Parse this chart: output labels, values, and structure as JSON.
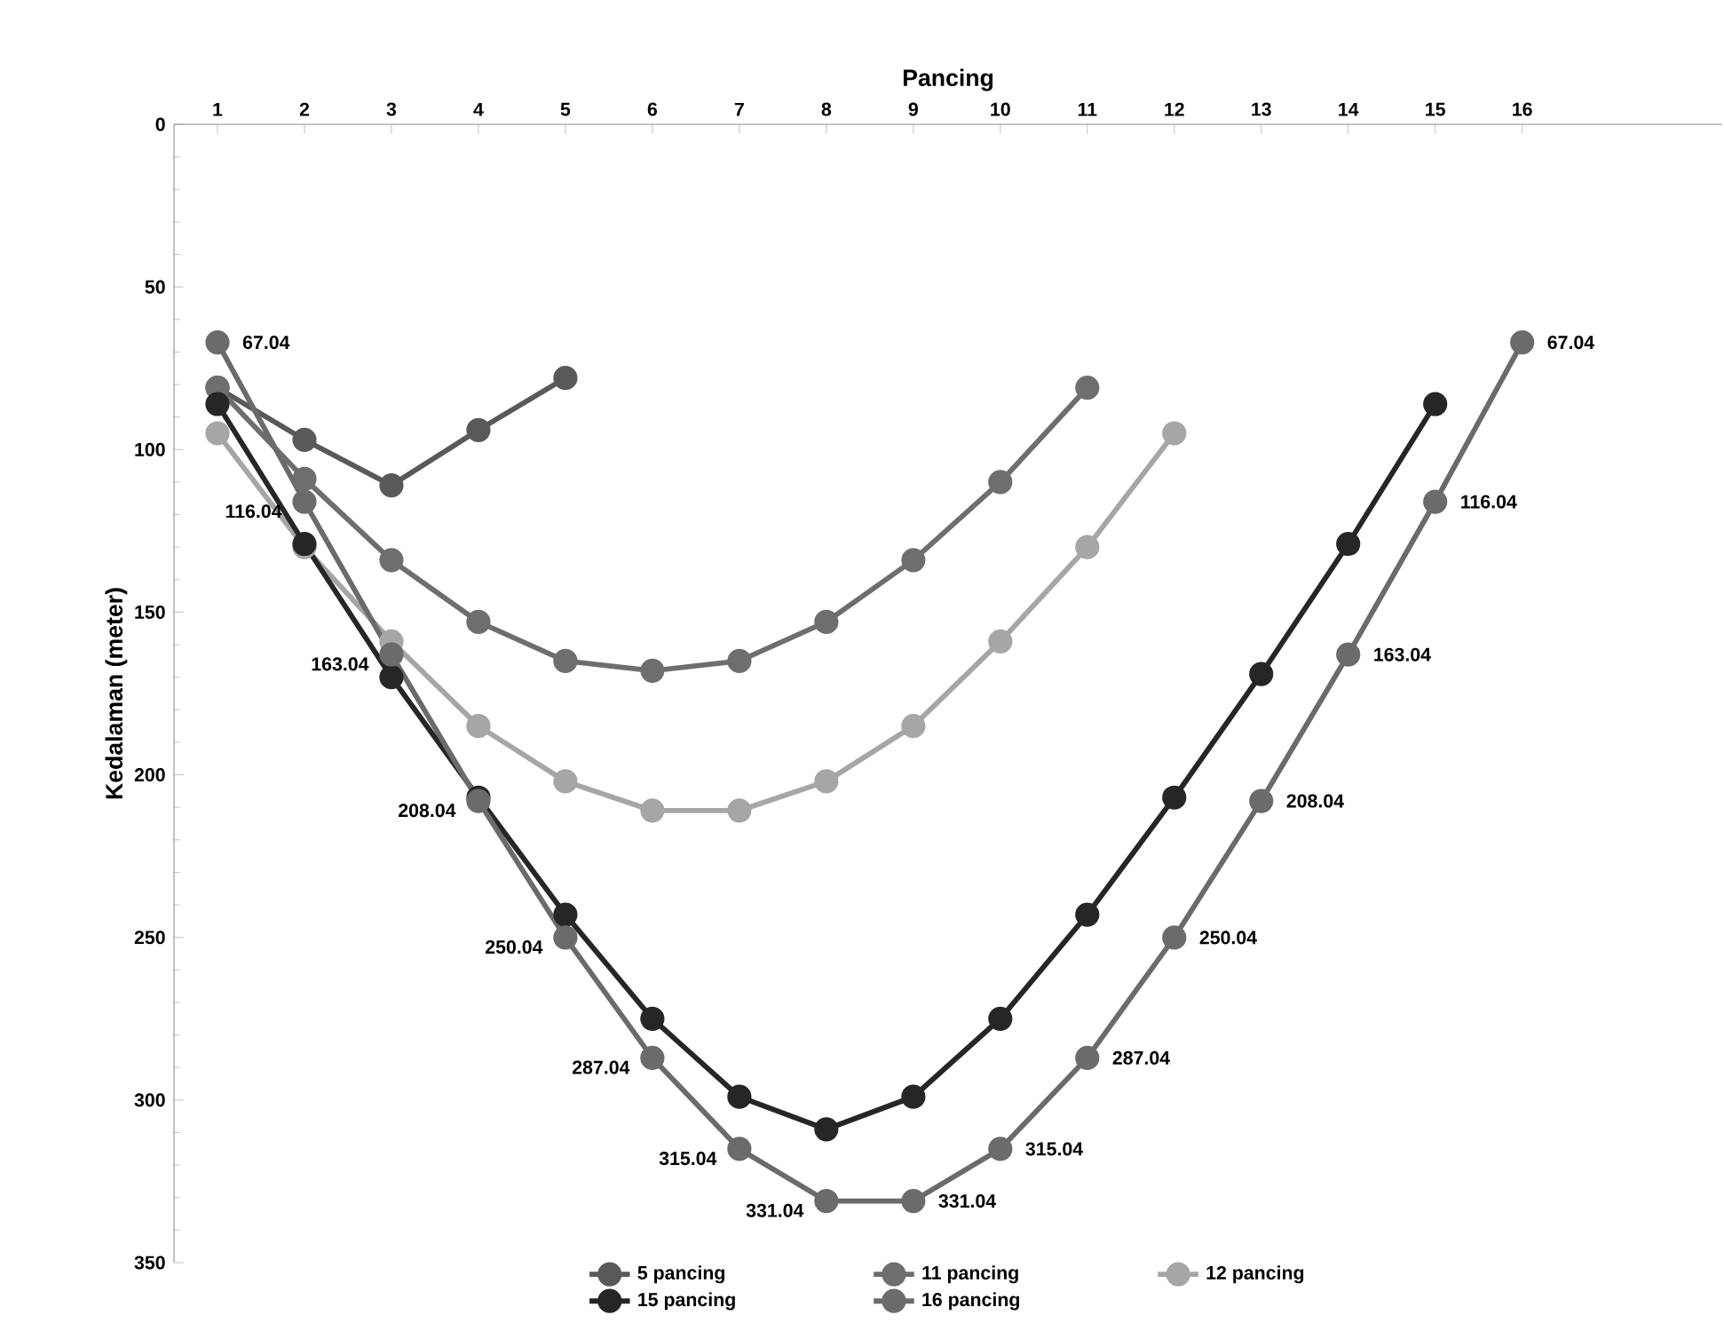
{
  "chart_data": {
    "type": "line",
    "xlabel": "Pancing",
    "ylabel": "Kedalaman (meter)",
    "xlim": [
      0.5,
      18.3
    ],
    "xticks": [
      1,
      2,
      3,
      4,
      5,
      6,
      7,
      8,
      9,
      10,
      11,
      12,
      13,
      14,
      15,
      16
    ],
    "ylim": [
      350,
      0
    ],
    "yticks": [
      0,
      50,
      100,
      150,
      200,
      250,
      300,
      350
    ],
    "legend": "bottom",
    "marker": "circle",
    "grid": false,
    "series": [
      {
        "name": "5 pancing",
        "color": "#595959",
        "x": [
          1,
          2,
          3,
          4,
          5
        ],
        "values": [
          81,
          97,
          111,
          94,
          78
        ]
      },
      {
        "name": "11 pancing",
        "color": "#6e6e6e",
        "x": [
          1,
          2,
          3,
          4,
          5,
          6,
          7,
          8,
          9,
          10,
          11
        ],
        "values": [
          81,
          109,
          134,
          153,
          165,
          168,
          165,
          153,
          134,
          110,
          81
        ]
      },
      {
        "name": "12 pancing",
        "color": "#a6a6a6",
        "x": [
          1,
          2,
          3,
          4,
          5,
          6,
          7,
          8,
          9,
          10,
          11,
          12
        ],
        "values": [
          95,
          130,
          159,
          185,
          202,
          211,
          211,
          202,
          185,
          159,
          130,
          95
        ]
      },
      {
        "name": "15 pancing",
        "color": "#262626",
        "x": [
          1,
          2,
          3,
          4,
          5,
          6,
          7,
          8,
          9,
          10,
          11,
          12,
          13,
          14,
          15
        ],
        "values": [
          86,
          129,
          170,
          207,
          243,
          275,
          299,
          309,
          299,
          275,
          243,
          207,
          169,
          129,
          86
        ]
      },
      {
        "name": "16 pancing",
        "color": "#6b6b6b",
        "x": [
          1,
          2,
          3,
          4,
          5,
          6,
          7,
          8,
          9,
          10,
          11,
          12,
          13,
          14,
          15,
          16
        ],
        "values": [
          67.04,
          116.04,
          163.04,
          208.04,
          250.04,
          287.04,
          315.04,
          331.04,
          331.04,
          315.04,
          287.04,
          250.04,
          208.04,
          163.04,
          116.04,
          67.04
        ],
        "value_labels": [
          "67.04",
          "116.04",
          "163.04",
          "208.04",
          "250.04",
          "287.04",
          "315.04",
          "331.04",
          "331.04",
          "315.04",
          "287.04",
          "250.04",
          "208.04",
          "163.04",
          "116.04",
          "67.04"
        ]
      }
    ]
  }
}
